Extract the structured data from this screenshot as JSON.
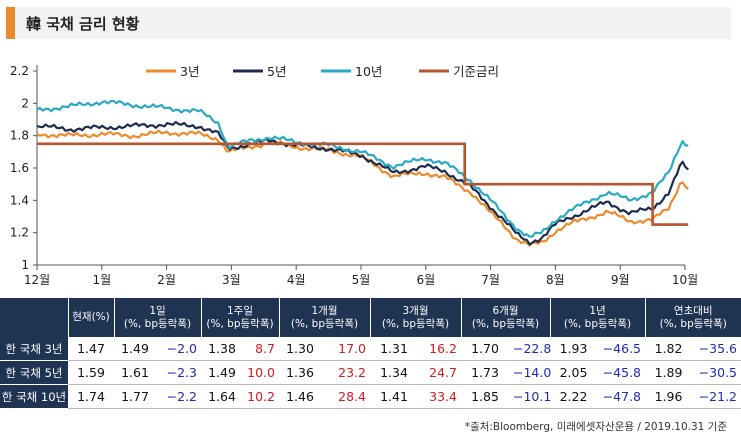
{
  "title": "韓 국채 금리 현황",
  "colors": {
    "y3": "#ed8b2c",
    "y5": "#1c2c4f",
    "y10": "#2aa9c2",
    "base": "#b5562f",
    "header_bg": "#1f3352",
    "pos": "#d71920",
    "neg": "#1f2bb8"
  },
  "chart_data": {
    "type": "line",
    "title": "韓 국채 금리 현황",
    "ylim": [
      1,
      2.2
    ],
    "yticks": [
      "1",
      "1.2",
      "1.4",
      "1.6",
      "1.8",
      "2",
      "2.2"
    ],
    "x_tick_labels": [
      "12월",
      "1월",
      "2월",
      "3월",
      "4월",
      "5월",
      "6월",
      "7월",
      "8월",
      "9월",
      "10월"
    ],
    "legend": [
      "3년",
      "5년",
      "10년",
      "기준금리"
    ],
    "legend_position": "top",
    "series": [
      {
        "name": "3년",
        "color": "#ed8b2c",
        "points": [
          [
            0,
            1.81
          ],
          [
            0.5,
            1.8
          ],
          [
            1,
            1.81
          ],
          [
            1.5,
            1.8
          ],
          [
            2,
            1.82
          ],
          [
            2.5,
            1.81
          ],
          [
            2.8,
            1.78
          ],
          [
            2.95,
            1.7
          ],
          [
            3.3,
            1.73
          ],
          [
            3.6,
            1.76
          ],
          [
            4,
            1.73
          ],
          [
            4.5,
            1.71
          ],
          [
            5,
            1.67
          ],
          [
            5.5,
            1.55
          ],
          [
            6,
            1.57
          ],
          [
            6.3,
            1.54
          ],
          [
            6.7,
            1.45
          ],
          [
            7,
            1.32
          ],
          [
            7.2,
            1.25
          ],
          [
            7.4,
            1.16
          ],
          [
            7.6,
            1.12
          ],
          [
            7.8,
            1.14
          ],
          [
            8,
            1.21
          ],
          [
            8.2,
            1.25
          ],
          [
            8.5,
            1.29
          ],
          [
            8.8,
            1.33
          ],
          [
            9.15,
            1.27
          ],
          [
            9.5,
            1.28
          ],
          [
            9.75,
            1.35
          ],
          [
            9.95,
            1.53
          ],
          [
            10.05,
            1.47
          ]
        ]
      },
      {
        "name": "5년",
        "color": "#1c2c4f",
        "points": [
          [
            0,
            1.86
          ],
          [
            0.5,
            1.84
          ],
          [
            1,
            1.85
          ],
          [
            1.5,
            1.86
          ],
          [
            2,
            1.87
          ],
          [
            2.5,
            1.86
          ],
          [
            2.8,
            1.81
          ],
          [
            2.95,
            1.72
          ],
          [
            3.3,
            1.75
          ],
          [
            3.6,
            1.77
          ],
          [
            4,
            1.74
          ],
          [
            4.5,
            1.72
          ],
          [
            5,
            1.68
          ],
          [
            5.5,
            1.57
          ],
          [
            6,
            1.61
          ],
          [
            6.3,
            1.58
          ],
          [
            6.7,
            1.48
          ],
          [
            7,
            1.36
          ],
          [
            7.2,
            1.28
          ],
          [
            7.4,
            1.19
          ],
          [
            7.6,
            1.14
          ],
          [
            7.8,
            1.17
          ],
          [
            8,
            1.25
          ],
          [
            8.2,
            1.29
          ],
          [
            8.5,
            1.34
          ],
          [
            8.8,
            1.39
          ],
          [
            9.15,
            1.32
          ],
          [
            9.5,
            1.35
          ],
          [
            9.75,
            1.45
          ],
          [
            9.95,
            1.63
          ],
          [
            10.05,
            1.59
          ]
        ]
      },
      {
        "name": "10년",
        "color": "#2aa9c2",
        "points": [
          [
            0,
            1.96
          ],
          [
            0.5,
            1.98
          ],
          [
            1,
            2.01
          ],
          [
            1.5,
            1.99
          ],
          [
            2,
            1.97
          ],
          [
            2.5,
            1.95
          ],
          [
            2.8,
            1.88
          ],
          [
            2.95,
            1.73
          ],
          [
            3.3,
            1.77
          ],
          [
            3.6,
            1.79
          ],
          [
            4,
            1.76
          ],
          [
            4.5,
            1.74
          ],
          [
            5,
            1.7
          ],
          [
            5.5,
            1.61
          ],
          [
            6,
            1.66
          ],
          [
            6.3,
            1.63
          ],
          [
            6.7,
            1.52
          ],
          [
            7,
            1.4
          ],
          [
            7.2,
            1.31
          ],
          [
            7.4,
            1.23
          ],
          [
            7.6,
            1.17
          ],
          [
            7.8,
            1.2
          ],
          [
            8,
            1.28
          ],
          [
            8.2,
            1.33
          ],
          [
            8.5,
            1.39
          ],
          [
            8.8,
            1.45
          ],
          [
            9.15,
            1.4
          ],
          [
            9.5,
            1.45
          ],
          [
            9.75,
            1.57
          ],
          [
            9.95,
            1.77
          ],
          [
            10.05,
            1.74
          ]
        ]
      },
      {
        "name": "기준금리",
        "color": "#b5562f",
        "points": [
          [
            0,
            1.75
          ],
          [
            6.6,
            1.75
          ],
          [
            6.6,
            1.5
          ],
          [
            9.5,
            1.5
          ],
          [
            9.5,
            1.25
          ],
          [
            10.05,
            1.25
          ]
        ]
      }
    ]
  },
  "table": {
    "headers": [
      "",
      "현재(%)",
      "1일\n(%, bp등락폭)",
      "1주일\n(%, bp등락폭)",
      "1개월\n(%, bp등락폭)",
      "3개월\n(%, bp등락폭)",
      "6개월\n(%, bp등락폭)",
      "1년\n(%, bp등락폭)",
      "연초대비\n(%, bp등락폭)"
    ],
    "rows": [
      {
        "label": "한 국채 3년",
        "current": "1.47",
        "cells": [
          [
            "1.49",
            "−2.0"
          ],
          [
            "1.38",
            "8.7"
          ],
          [
            "1.30",
            "17.0"
          ],
          [
            "1.31",
            "16.2"
          ],
          [
            "1.70",
            "−22.8"
          ],
          [
            "1.93",
            "−46.5"
          ],
          [
            "1.82",
            "−35.6"
          ]
        ]
      },
      {
        "label": "한 국채 5년",
        "current": "1.59",
        "cells": [
          [
            "1.61",
            "−2.3"
          ],
          [
            "1.49",
            "10.0"
          ],
          [
            "1.36",
            "23.2"
          ],
          [
            "1.34",
            "24.7"
          ],
          [
            "1.73",
            "−14.0"
          ],
          [
            "2.05",
            "−45.8"
          ],
          [
            "1.89",
            "−30.5"
          ]
        ]
      },
      {
        "label": "한 국채 10년",
        "current": "1.74",
        "cells": [
          [
            "1.77",
            "−2.2"
          ],
          [
            "1.64",
            "10.2"
          ],
          [
            "1.46",
            "28.4"
          ],
          [
            "1.41",
            "33.4"
          ],
          [
            "1.85",
            "−10.1"
          ],
          [
            "2.22",
            "−47.8"
          ],
          [
            "1.96",
            "−21.2"
          ]
        ]
      }
    ]
  },
  "source": "*출처:Bloomberg, 미래에셋자산운용 / 2019.10.31 기준"
}
